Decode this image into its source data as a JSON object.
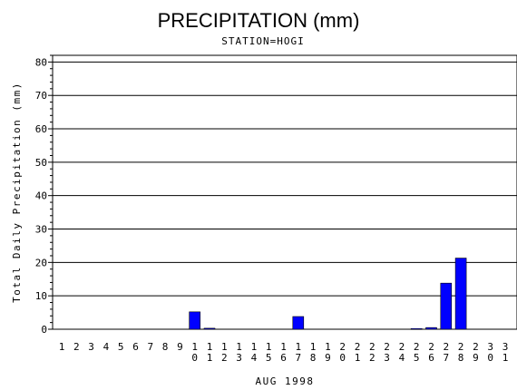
{
  "chart_data": {
    "type": "bar",
    "title": "PRECIPITATION (mm)",
    "subtitle": "STATION=HOGI",
    "ylabel": "Total Daily Precipitation (mm)",
    "xlabel": "AUG 1998",
    "ylim": [
      0,
      82
    ],
    "yticks": [
      0,
      10,
      20,
      30,
      40,
      50,
      60,
      70,
      80
    ],
    "grid": true,
    "bar_color": "#0000ff",
    "categories": [
      "1",
      "2",
      "3",
      "4",
      "5",
      "6",
      "7",
      "8",
      "9",
      "10",
      "11",
      "12",
      "13",
      "14",
      "15",
      "16",
      "17",
      "18",
      "19",
      "20",
      "21",
      "22",
      "23",
      "24",
      "25",
      "26",
      "27",
      "28",
      "29",
      "30",
      "31"
    ],
    "values": [
      0,
      0,
      0,
      0,
      0,
      0,
      0,
      0,
      0,
      5.2,
      0.3,
      0,
      0,
      0,
      0,
      0,
      3.8,
      0,
      0,
      0,
      0,
      0,
      0,
      0,
      0.2,
      0.5,
      13.8,
      21.3,
      0,
      0,
      0
    ]
  }
}
